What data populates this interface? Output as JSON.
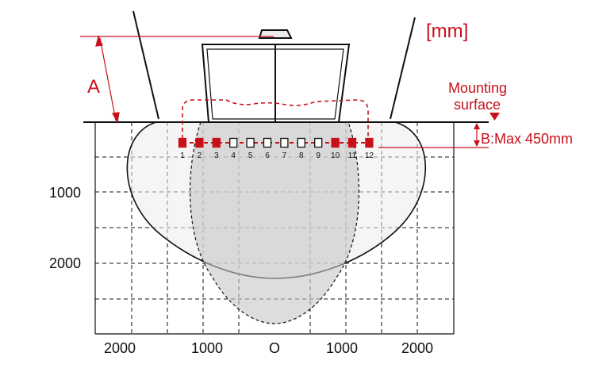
{
  "colors": {
    "accent_red": "#c8101b",
    "line_black": "#111111",
    "ellipse_fill": "#ececec",
    "lobe_fill": "#c7c7c7"
  },
  "labels": {
    "unit": "[mm]",
    "dim_a": "A",
    "mounting_line1": "Mounting",
    "mounting_line2": "surface",
    "dim_b": "B:Max 450mm",
    "origin": "O"
  },
  "axis": {
    "y_ticks": [
      "1000",
      "2000"
    ],
    "x_ticks": [
      "2000",
      "1000",
      "1000",
      "2000"
    ]
  },
  "sensors": [
    {
      "num": "1",
      "active": true
    },
    {
      "num": "2",
      "active": true
    },
    {
      "num": "3",
      "active": true
    },
    {
      "num": "4",
      "active": false
    },
    {
      "num": "5",
      "active": false
    },
    {
      "num": "6",
      "active": false
    },
    {
      "num": "7",
      "active": false
    },
    {
      "num": "8",
      "active": false
    },
    {
      "num": "9",
      "active": false
    },
    {
      "num": "10",
      "active": true
    },
    {
      "num": "11",
      "active": true
    },
    {
      "num": "12",
      "active": true
    }
  ],
  "icons": {
    "vehicle": "vehicle-outline-icon",
    "mounting_marker": "triangle-down-icon"
  }
}
